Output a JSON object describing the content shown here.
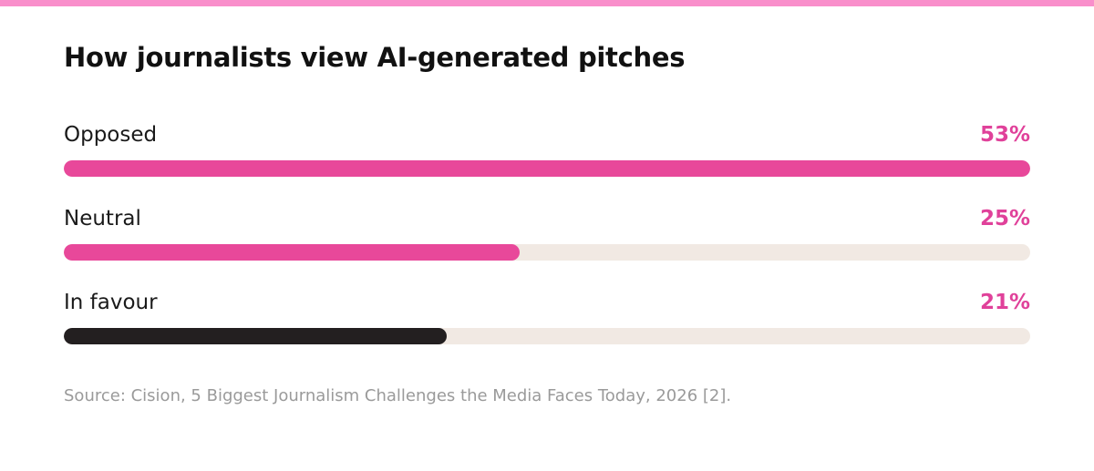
{
  "chart_data": {
    "type": "bar",
    "orientation": "horizontal",
    "title": "How journalists view AI-generated pitches",
    "categories": [
      "Opposed",
      "Neutral",
      "In favour"
    ],
    "values": [
      53,
      25,
      21
    ],
    "value_labels": [
      "53%",
      "25%",
      "21%"
    ],
    "unit": "%",
    "xlim": [
      0,
      53
    ],
    "grid": false,
    "legend": "none",
    "source": "Source: Cision, 5 Biggest Journalism Challenges the Media Faces Today, 2026 [2]."
  },
  "colors": {
    "stripe": "#F98FCB",
    "accent": "#E8489A",
    "dark": "#231F20",
    "track": "#F1E9E3",
    "value_text": "#E0419A"
  },
  "bar_colors": [
    "#E8489A",
    "#E8489A",
    "#231F20"
  ]
}
